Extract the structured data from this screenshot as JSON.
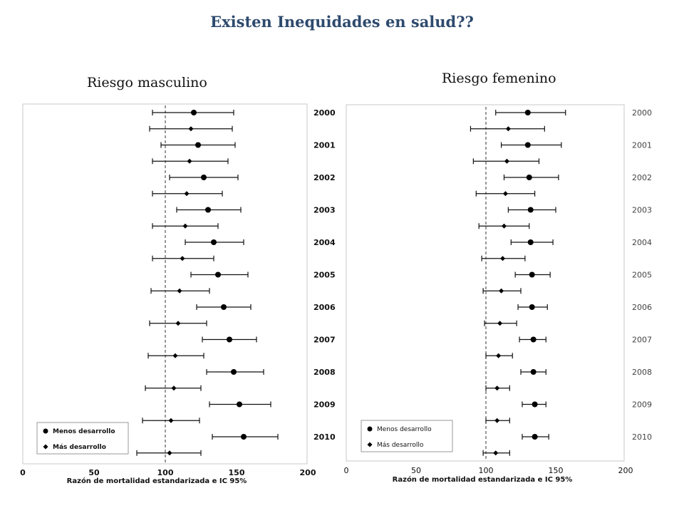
{
  "title": "Existen Inequidades en salud??",
  "chart_data": [
    {
      "type": "scatter",
      "subtitle": "Riesgo masculino",
      "xlabel": "Razón de mortalidad estandarizada e IC 95%",
      "xlim": [
        0,
        200
      ],
      "xticks": [
        "0",
        "50",
        "100",
        "150",
        "200"
      ],
      "reference_line": 100,
      "years": [
        "2000",
        "2001",
        "2002",
        "2003",
        "2004",
        "2005",
        "2006",
        "2007",
        "2008",
        "2009",
        "2010"
      ],
      "legend": {
        "placement": "bottom-left",
        "items": [
          "Menos desarrollo",
          "Más desarrollo"
        ]
      },
      "series": [
        {
          "name": "Menos desarrollo",
          "marker": "circle",
          "points": [
            {
              "year": "2000",
              "value": 120,
              "lower": 91,
              "upper": 148
            },
            {
              "year": "2001",
              "value": 123,
              "lower": 97,
              "upper": 149
            },
            {
              "year": "2002",
              "value": 127,
              "lower": 103,
              "upper": 151
            },
            {
              "year": "2003",
              "value": 130,
              "lower": 108,
              "upper": 153
            },
            {
              "year": "2004",
              "value": 134,
              "lower": 114,
              "upper": 155
            },
            {
              "year": "2005",
              "value": 137,
              "lower": 118,
              "upper": 158
            },
            {
              "year": "2006",
              "value": 141,
              "lower": 122,
              "upper": 160
            },
            {
              "year": "2007",
              "value": 145,
              "lower": 126,
              "upper": 164
            },
            {
              "year": "2008",
              "value": 148,
              "lower": 129,
              "upper": 169
            },
            {
              "year": "2009",
              "value": 152,
              "lower": 131,
              "upper": 174
            },
            {
              "year": "2010",
              "value": 155,
              "lower": 133,
              "upper": 179
            }
          ]
        },
        {
          "name": "Más desarrollo",
          "marker": "diamond",
          "points": [
            {
              "year": "2000",
              "value": 118,
              "lower": 89,
              "upper": 147
            },
            {
              "year": "2001",
              "value": 117,
              "lower": 91,
              "upper": 144
            },
            {
              "year": "2002",
              "value": 115,
              "lower": 91,
              "upper": 140
            },
            {
              "year": "2003",
              "value": 114,
              "lower": 91,
              "upper": 137
            },
            {
              "year": "2004",
              "value": 112,
              "lower": 91,
              "upper": 134
            },
            {
              "year": "2005",
              "value": 110,
              "lower": 90,
              "upper": 131
            },
            {
              "year": "2006",
              "value": 109,
              "lower": 89,
              "upper": 129
            },
            {
              "year": "2007",
              "value": 107,
              "lower": 88,
              "upper": 127
            },
            {
              "year": "2008",
              "value": 106,
              "lower": 86,
              "upper": 125
            },
            {
              "year": "2009",
              "value": 104,
              "lower": 84,
              "upper": 124
            },
            {
              "year": "2010",
              "value": 103,
              "lower": 80,
              "upper": 125
            }
          ]
        }
      ]
    },
    {
      "type": "scatter",
      "subtitle": "Riesgo femenino",
      "xlabel": "Razón de mortalidad estandarizada e IC 95%",
      "xlim": [
        0,
        200
      ],
      "xticks": [
        "0",
        "50",
        "100",
        "150",
        "200"
      ],
      "reference_line": 100,
      "years": [
        "2000",
        "2001",
        "2002",
        "2003",
        "2004",
        "2005",
        "2006",
        "2007",
        "2008",
        "2009",
        "2010"
      ],
      "legend": {
        "placement": "bottom-left",
        "items": [
          "Menos desarrollo",
          "Más desarrollo"
        ]
      },
      "series": [
        {
          "name": "Menos desarrollo",
          "marker": "circle",
          "points": [
            {
              "year": "2000",
              "value": 130,
              "lower": 107,
              "upper": 157
            },
            {
              "year": "2001",
              "value": 130,
              "lower": 111,
              "upper": 154
            },
            {
              "year": "2002",
              "value": 131,
              "lower": 113,
              "upper": 152
            },
            {
              "year": "2003",
              "value": 132,
              "lower": 116,
              "upper": 150
            },
            {
              "year": "2004",
              "value": 132,
              "lower": 118,
              "upper": 148
            },
            {
              "year": "2005",
              "value": 133,
              "lower": 121,
              "upper": 146
            },
            {
              "year": "2006",
              "value": 133,
              "lower": 123,
              "upper": 144
            },
            {
              "year": "2007",
              "value": 134,
              "lower": 124,
              "upper": 143
            },
            {
              "year": "2008",
              "value": 134,
              "lower": 125,
              "upper": 143
            },
            {
              "year": "2009",
              "value": 135,
              "lower": 126,
              "upper": 143
            },
            {
              "year": "2010",
              "value": 135,
              "lower": 126,
              "upper": 145
            }
          ]
        },
        {
          "name": "Más desarrollo",
          "marker": "diamond",
          "points": [
            {
              "year": "2000",
              "value": 116,
              "lower": 89,
              "upper": 142
            },
            {
              "year": "2001",
              "value": 115,
              "lower": 91,
              "upper": 138
            },
            {
              "year": "2002",
              "value": 114,
              "lower": 93,
              "upper": 135
            },
            {
              "year": "2003",
              "value": 113,
              "lower": 95,
              "upper": 131
            },
            {
              "year": "2004",
              "value": 112,
              "lower": 97,
              "upper": 128
            },
            {
              "year": "2005",
              "value": 111,
              "lower": 98,
              "upper": 125
            },
            {
              "year": "2006",
              "value": 110,
              "lower": 99,
              "upper": 122
            },
            {
              "year": "2007",
              "value": 109,
              "lower": 100,
              "upper": 119
            },
            {
              "year": "2008",
              "value": 108,
              "lower": 100,
              "upper": 117
            },
            {
              "year": "2009",
              "value": 108,
              "lower": 100,
              "upper": 117
            },
            {
              "year": "2010",
              "value": 107,
              "lower": 98,
              "upper": 117
            }
          ]
        }
      ]
    }
  ]
}
